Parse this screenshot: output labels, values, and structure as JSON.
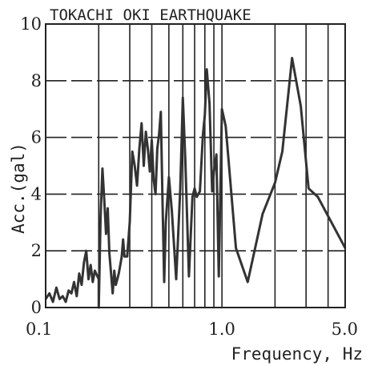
{
  "chart_data": {
    "type": "line",
    "title": "TOKACHI OKI EARTHQUAKE",
    "xlabel": "Frequency, Hz",
    "ylabel": "Acc.(gal)",
    "x_scale": "log",
    "xlim": [
      0.1,
      5.0
    ],
    "ylim": [
      0,
      10
    ],
    "grid": true,
    "x_tick_labels": [
      {
        "value": 0.1,
        "label": "0.1"
      },
      {
        "value": 1.0,
        "label": "1.0"
      },
      {
        "value": 5.0,
        "label": "5.0"
      }
    ],
    "y_tick_labels": [
      {
        "value": 0,
        "label": "0"
      },
      {
        "value": 2,
        "label": "2"
      },
      {
        "value": 4,
        "label": "4"
      },
      {
        "value": 6,
        "label": "6"
      },
      {
        "value": 8,
        "label": "8"
      },
      {
        "value": 10,
        "label": "10"
      }
    ],
    "x_minor_gridlines": [
      0.2,
      0.3,
      0.4,
      0.5,
      0.6,
      0.7,
      0.8,
      0.9,
      1.0,
      2.0,
      3.0,
      4.0
    ],
    "y_gridlines": [
      2,
      4,
      6,
      8
    ],
    "x": [
      0.1,
      0.105,
      0.11,
      0.115,
      0.12,
      0.125,
      0.13,
      0.135,
      0.14,
      0.145,
      0.15,
      0.155,
      0.16,
      0.165,
      0.17,
      0.175,
      0.18,
      0.185,
      0.19,
      0.2,
      0.2,
      0.205,
      0.21,
      0.215,
      0.22,
      0.225,
      0.23,
      0.235,
      0.24,
      0.245,
      0.25,
      0.255,
      0.26,
      0.265,
      0.27,
      0.275,
      0.28,
      0.29,
      0.3,
      0.31,
      0.32,
      0.33,
      0.34,
      0.35,
      0.36,
      0.37,
      0.38,
      0.39,
      0.4,
      0.41,
      0.42,
      0.43,
      0.44,
      0.45,
      0.46,
      0.47,
      0.48,
      0.5,
      0.52,
      0.55,
      0.58,
      0.6,
      0.62,
      0.65,
      0.68,
      0.7,
      0.72,
      0.75,
      0.78,
      0.8,
      0.82,
      0.85,
      0.88,
      0.9,
      0.93,
      0.96,
      1.0,
      1.05,
      1.2,
      1.4,
      1.7,
      2.0,
      2.2,
      2.5,
      2.8,
      3.1,
      3.5,
      5.0
    ],
    "y": [
      0.3,
      0.5,
      0.2,
      0.7,
      0.3,
      0.4,
      0.2,
      0.6,
      0.5,
      0.9,
      0.4,
      1.2,
      0.8,
      1.6,
      2.0,
      1.0,
      1.5,
      0.9,
      1.3,
      1.0,
      0.0,
      3.2,
      4.9,
      3.8,
      2.6,
      3.5,
      1.9,
      1.2,
      0.5,
      1.3,
      0.8,
      1.0,
      1.2,
      1.5,
      1.8,
      2.4,
      1.8,
      1.8,
      3.0,
      5.5,
      5.0,
      4.3,
      5.6,
      6.5,
      5.0,
      6.2,
      5.6,
      4.8,
      5.9,
      4.5,
      4.0,
      5.6,
      6.1,
      6.9,
      3.8,
      0.9,
      3.0,
      4.6,
      3.4,
      1.0,
      4.2,
      7.4,
      5.2,
      1.1,
      3.9,
      4.2,
      3.9,
      4.1,
      6.1,
      6.8,
      8.4,
      7.2,
      4.1,
      4.8,
      5.4,
      1.1,
      7.0,
      6.4,
      2.1,
      0.9,
      3.3,
      4.4,
      5.5,
      8.8,
      7.1,
      4.2,
      3.9,
      2.1
    ]
  }
}
